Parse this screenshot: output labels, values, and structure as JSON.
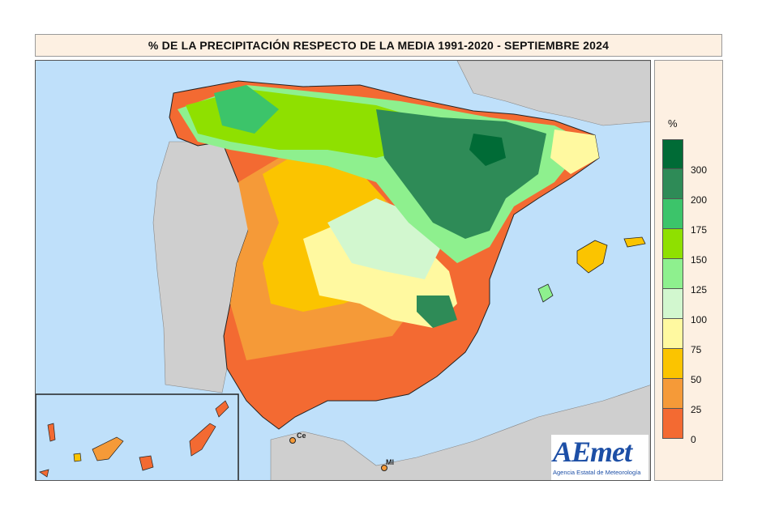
{
  "title": "% DE LA PRECIPITACIÓN RESPECTO DE LA MEDIA 1991-2020 - SEPTIEMBRE 2024",
  "legend": {
    "unit": "%",
    "classes": [
      {
        "label": "300",
        "color": "#006b36"
      },
      {
        "label": "200",
        "color": "#2e8b57"
      },
      {
        "label": "175",
        "color": "#3cc46a"
      },
      {
        "label": "150",
        "color": "#8fe000"
      },
      {
        "label": "125",
        "color": "#8ef08e"
      },
      {
        "label": "100",
        "color": "#d2f7cf"
      },
      {
        "label": "75",
        "color": "#fff9a0"
      },
      {
        "label": "50",
        "color": "#fbc400"
      },
      {
        "label": "25",
        "color": "#f59a38"
      },
      {
        "label": "0",
        "color": "#f36a32"
      }
    ]
  },
  "places": {
    "ceuta": "Ce",
    "melilla": "Ml"
  },
  "logo": {
    "wordmark": "AEmet",
    "subtitle": "Agencia Estatal de Meteorología"
  },
  "colors": {
    "sea": "#bfe0fa",
    "land_outside": "#cfcfcf",
    "border": "#222222"
  }
}
